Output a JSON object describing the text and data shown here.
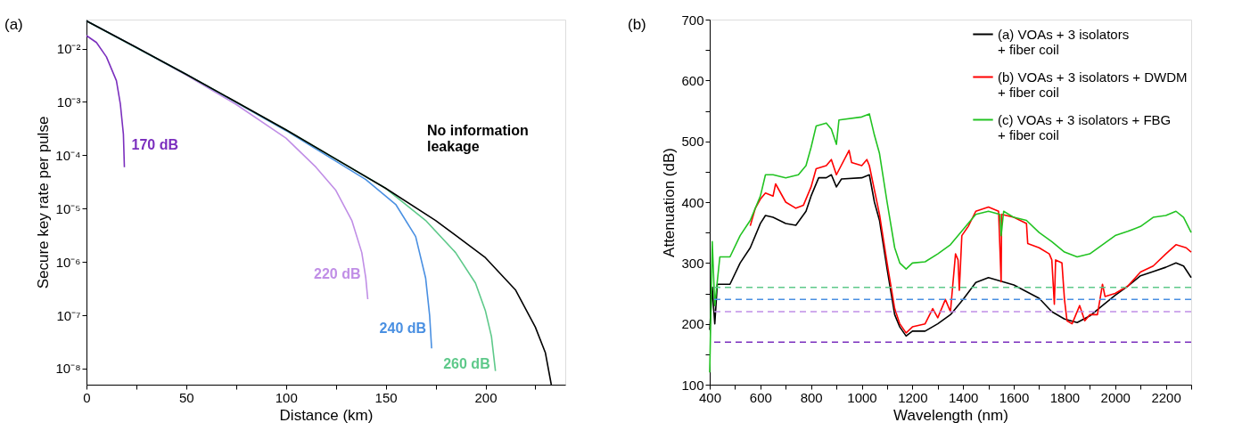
{
  "chart_data": [
    {
      "type": "line",
      "title": "(a)",
      "xlabel": "Distance (km)",
      "ylabel": "Secure key rate per pulse",
      "log": "y",
      "legend": false,
      "grid": false,
      "marker": "none",
      "line_style": "solid",
      "xlim": [
        0,
        240
      ],
      "ylim": [
        5e-09,
        0.035
      ],
      "xticks": [
        0,
        50,
        100,
        150,
        200,
        {
          "value": 25,
          "label": null
        },
        {
          "value": 75,
          "label": null
        },
        {
          "value": 125,
          "label": null
        },
        {
          "value": 175,
          "label": null
        },
        {
          "value": 225,
          "label": null
        }
      ],
      "yticks": [
        {
          "value": 1e-08,
          "label": "10⁻⁸"
        },
        {
          "value": 1e-07,
          "label": "10⁻⁷"
        },
        {
          "value": 1e-06,
          "label": "10⁻⁶"
        },
        {
          "value": 1e-05,
          "label": "10⁻⁵"
        },
        {
          "value": 0.0001,
          "label": "10⁻⁴"
        },
        {
          "value": 0.001,
          "label": "10⁻³"
        },
        {
          "value": 0.01,
          "label": "10⁻²"
        }
      ],
      "series": [
        {
          "name": "170 dB",
          "color": "#7b2fbe",
          "x": [
            0,
            5,
            10,
            15,
            17,
            18.5,
            19
          ],
          "values": [
            0.0175,
            0.013,
            0.007,
            0.0025,
            0.0009,
            0.00025,
            6e-05
          ]
        },
        {
          "name": "220 dB",
          "color": "#c08ee6",
          "x": [
            0,
            25,
            50,
            75,
            100,
            115,
            125,
            133,
            138,
            140,
            141
          ],
          "values": [
            0.033,
            0.0105,
            0.0032,
            0.0009,
            0.00021,
            6e-05,
            2.2e-05,
            6e-06,
            1.5e-06,
            5e-07,
            2e-07
          ]
        },
        {
          "name": "240 dB",
          "color": "#4a90e2",
          "x": [
            0,
            50,
            100,
            140,
            155,
            165,
            170,
            172,
            173
          ],
          "values": [
            0.033,
            0.0033,
            0.00029,
            3.5e-05,
            1.2e-05,
            3e-06,
            5e-07,
            1e-07,
            2.4e-08
          ]
        },
        {
          "name": "260 dB",
          "color": "#5ec98a",
          "x": [
            0,
            50,
            100,
            150,
            170,
            185,
            195,
            200,
            203,
            205
          ],
          "values": [
            0.033,
            0.0033,
            0.0003,
            2.4e-05,
            6e-06,
            1.5e-06,
            4e-07,
            1.2e-07,
            4e-08,
            9e-09
          ]
        },
        {
          "name": "No information\nleakage",
          "color": "#000000",
          "x": [
            0,
            25,
            50,
            75,
            100,
            125,
            150,
            175,
            200,
            215,
            225,
            230,
            233
          ],
          "values": [
            0.033,
            0.0105,
            0.0033,
            0.001,
            0.0003,
            8.5e-05,
            2.4e-05,
            6e-06,
            1.2e-06,
            3e-07,
            6e-08,
            2e-08,
            5e-09
          ]
        }
      ]
    },
    {
      "type": "line",
      "title": "(b)",
      "xlabel": "Wavelength (nm)",
      "ylabel": "Attenuation (dB)",
      "legend": "top right",
      "grid": false,
      "marker": "none",
      "line_style": "solid",
      "xlim": [
        400,
        2300
      ],
      "ylim": [
        100,
        700
      ],
      "xticks": [
        400,
        600,
        800,
        1000,
        1200,
        1400,
        1600,
        1800,
        2000,
        2200,
        {
          "value": 500,
          "label": null
        },
        {
          "value": 700,
          "label": null
        },
        {
          "value": 900,
          "label": null
        },
        {
          "value": 1100,
          "label": null
        },
        {
          "value": 1300,
          "label": null
        },
        {
          "value": 1500,
          "label": null
        },
        {
          "value": 1700,
          "label": null
        },
        {
          "value": 1900,
          "label": null
        },
        {
          "value": 2100,
          "label": null
        },
        {
          "value": 2300,
          "label": null
        }
      ],
      "yticks": [
        100,
        200,
        300,
        400,
        500,
        600,
        700,
        {
          "value": 150,
          "label": null
        },
        {
          "value": 250,
          "label": null
        },
        {
          "value": 350,
          "label": null
        },
        {
          "value": 450,
          "label": null
        },
        {
          "value": 550,
          "label": null
        },
        {
          "value": 650,
          "label": null
        }
      ],
      "ref_lines": [
        {
          "axis": "y",
          "value": 260,
          "color": "#5ec98a",
          "line_style": "dashed"
        },
        {
          "axis": "y",
          "value": 240,
          "color": "#4a90e2",
          "line_style": "dashed"
        },
        {
          "axis": "y",
          "value": 220,
          "color": "#c08ee6",
          "line_style": "dashed"
        },
        {
          "axis": "y",
          "value": 170,
          "color": "#7b2fbe",
          "line_style": "dashed"
        }
      ],
      "series": [
        {
          "name": "(a) VOAs + 3 isolators\n+ fiber coil",
          "color": "#000000",
          "x": [
            400,
            410,
            420,
            430,
            480,
            520,
            560,
            600,
            620,
            650,
            700,
            740,
            780,
            800,
            830,
            860,
            880,
            900,
            920,
            1000,
            1030,
            1050,
            1070,
            1100,
            1130,
            1150,
            1175,
            1200,
            1250,
            1300,
            1350,
            1400,
            1450,
            1500,
            1600,
            1700,
            1750,
            1800,
            1850,
            1900,
            1950,
            2000,
            2050,
            2100,
            2150,
            2200,
            2240,
            2270,
            2300
          ],
          "values": [
            190,
            260,
            200,
            265,
            265,
            300,
            325,
            365,
            378,
            375,
            365,
            362,
            385,
            410,
            440,
            440,
            445,
            425,
            438,
            440,
            445,
            400,
            370,
            290,
            215,
            195,
            180,
            188,
            188,
            200,
            215,
            240,
            268,
            276,
            264,
            242,
            220,
            208,
            202,
            213,
            230,
            247,
            262,
            279,
            286,
            293,
            300,
            295,
            276
          ]
        },
        {
          "name": "(b) VOAs + 3 isolators + DWDM\n+ fiber coil",
          "color": "#ff0000",
          "x": [
            560,
            580,
            600,
            620,
            650,
            660,
            700,
            740,
            770,
            800,
            820,
            860,
            880,
            900,
            950,
            960,
            1000,
            1020,
            1030,
            1050,
            1070,
            1100,
            1130,
            1150,
            1175,
            1200,
            1250,
            1280,
            1300,
            1330,
            1350,
            1370,
            1380,
            1385,
            1395,
            1420,
            1450,
            1500,
            1540,
            1550,
            1552,
            1600,
            1650,
            1655,
            1700,
            1740,
            1750,
            1760,
            1765,
            1790,
            1800,
            1810,
            1830,
            1860,
            1880,
            1900,
            1930,
            1950,
            1960,
            2000,
            2050,
            2100,
            2150,
            2200,
            2240,
            2280,
            2300
          ],
          "values": [
            361,
            390,
            405,
            415,
            410,
            430,
            400,
            390,
            395,
            425,
            455,
            460,
            470,
            445,
            485,
            465,
            460,
            470,
            460,
            420,
            380,
            300,
            225,
            200,
            185,
            195,
            200,
            225,
            210,
            240,
            220,
            315,
            305,
            255,
            345,
            360,
            385,
            392,
            385,
            269,
            380,
            375,
            365,
            332,
            325,
            315,
            305,
            232,
            305,
            300,
            240,
            205,
            200,
            230,
            205,
            215,
            215,
            265,
            245,
            250,
            262,
            285,
            295,
            315,
            330,
            325,
            318
          ]
        },
        {
          "name": "(c) VOAs + 3 isolators + FBG\n+ fiber coil",
          "color": "#22c322",
          "x": [
            400,
            410,
            420,
            440,
            480,
            520,
            560,
            600,
            620,
            650,
            700,
            750,
            780,
            800,
            820,
            860,
            880,
            900,
            910,
            1000,
            1030,
            1050,
            1070,
            1100,
            1130,
            1150,
            1175,
            1200,
            1250,
            1300,
            1350,
            1400,
            1450,
            1500,
            1545,
            1550,
            1560,
            1600,
            1650,
            1700,
            1750,
            1800,
            1850,
            1900,
            1950,
            2000,
            2050,
            2100,
            2150,
            2200,
            2240,
            2270,
            2300
          ],
          "values": [
            120,
            335,
            230,
            310,
            310,
            345,
            370,
            410,
            445,
            445,
            440,
            445,
            460,
            490,
            525,
            530,
            520,
            495,
            535,
            540,
            545,
            510,
            480,
            400,
            325,
            300,
            290,
            300,
            302,
            315,
            330,
            355,
            380,
            385,
            380,
            345,
            385,
            375,
            370,
            350,
            335,
            318,
            310,
            315,
            330,
            345,
            352,
            360,
            375,
            378,
            385,
            375,
            350
          ]
        }
      ]
    }
  ]
}
